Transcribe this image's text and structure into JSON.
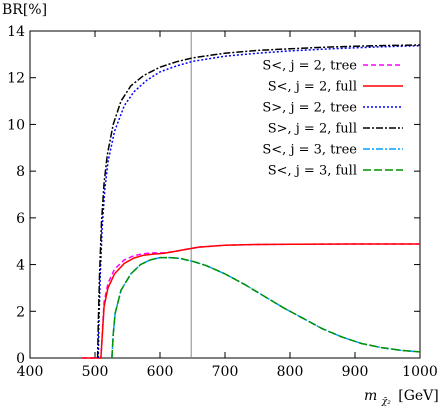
{
  "chart_data": {
    "type": "line",
    "ylabel": "BR[%]",
    "xlabel_main": "m",
    "xlabel_sub": "χ̃₂",
    "xlabel_unit": "[GeV]",
    "xlim": [
      400,
      1000
    ],
    "ylim": [
      0,
      14
    ],
    "xticks": [
      400,
      500,
      600,
      700,
      800,
      900,
      1000
    ],
    "yticks": [
      0,
      2,
      4,
      6,
      8,
      10,
      12,
      14
    ],
    "grid": false,
    "legend_position": "right",
    "vline_x": 648,
    "series": [
      {
        "name": "S<, j = 2, tree",
        "color": "#ff00ff",
        "dash": "5,3",
        "points": [
          [
            480,
            0
          ],
          [
            509,
            0
          ],
          [
            511,
            1.0
          ],
          [
            514,
            2.4
          ],
          [
            520,
            3.2
          ],
          [
            530,
            3.8
          ],
          [
            545,
            4.2
          ],
          [
            560,
            4.38
          ],
          [
            575,
            4.47
          ],
          [
            590,
            4.5
          ],
          [
            605,
            4.5
          ],
          [
            620,
            4.55
          ],
          [
            640,
            4.65
          ],
          [
            660,
            4.75
          ],
          [
            700,
            4.83
          ],
          [
            750,
            4.86
          ],
          [
            800,
            4.87
          ],
          [
            900,
            4.88
          ],
          [
            1000,
            4.88
          ]
        ]
      },
      {
        "name": "S<, j = 2, full",
        "color": "#ff0000",
        "dash": "",
        "points": [
          [
            480,
            0
          ],
          [
            509,
            0
          ],
          [
            511,
            0.9
          ],
          [
            514,
            2.2
          ],
          [
            520,
            3.0
          ],
          [
            530,
            3.6
          ],
          [
            545,
            4.05
          ],
          [
            560,
            4.28
          ],
          [
            575,
            4.4
          ],
          [
            590,
            4.45
          ],
          [
            605,
            4.48
          ],
          [
            620,
            4.55
          ],
          [
            640,
            4.65
          ],
          [
            660,
            4.75
          ],
          [
            700,
            4.83
          ],
          [
            750,
            4.86
          ],
          [
            800,
            4.87
          ],
          [
            900,
            4.88
          ],
          [
            1000,
            4.88
          ]
        ]
      },
      {
        "name": "S>, j = 2, tree",
        "color": "#0000ff",
        "dash": "2,2",
        "points": [
          [
            505,
            0
          ],
          [
            506,
            1.5
          ],
          [
            508,
            3.5
          ],
          [
            511,
            5.6
          ],
          [
            515,
            7.2
          ],
          [
            520,
            8.4
          ],
          [
            530,
            9.7
          ],
          [
            545,
            10.8
          ],
          [
            560,
            11.4
          ],
          [
            580,
            11.9
          ],
          [
            600,
            12.25
          ],
          [
            625,
            12.5
          ],
          [
            650,
            12.7
          ],
          [
            700,
            12.92
          ],
          [
            750,
            13.05
          ],
          [
            800,
            13.15
          ],
          [
            850,
            13.22
          ],
          [
            900,
            13.28
          ],
          [
            950,
            13.33
          ],
          [
            1000,
            13.37
          ]
        ]
      },
      {
        "name": "S>, j = 2, full",
        "color": "#000000",
        "dash": "7,2,2,2",
        "points": [
          [
            504,
            0
          ],
          [
            505,
            1.5
          ],
          [
            507,
            3.5
          ],
          [
            510,
            5.8
          ],
          [
            514,
            7.5
          ],
          [
            519,
            8.7
          ],
          [
            528,
            10.0
          ],
          [
            540,
            11.0
          ],
          [
            555,
            11.65
          ],
          [
            575,
            12.1
          ],
          [
            600,
            12.45
          ],
          [
            625,
            12.68
          ],
          [
            650,
            12.85
          ],
          [
            700,
            13.05
          ],
          [
            750,
            13.17
          ],
          [
            800,
            13.24
          ],
          [
            850,
            13.3
          ],
          [
            900,
            13.35
          ],
          [
            950,
            13.38
          ],
          [
            1000,
            13.4
          ]
        ]
      },
      {
        "name": "S<, j = 3, tree",
        "color": "#00a0ff",
        "dash": "7,2,2,2",
        "points": [
          [
            526,
            0
          ],
          [
            528,
            1.0
          ],
          [
            531,
            1.9
          ],
          [
            540,
            2.9
          ],
          [
            555,
            3.6
          ],
          [
            570,
            4.0
          ],
          [
            585,
            4.2
          ],
          [
            600,
            4.3
          ],
          [
            615,
            4.3
          ],
          [
            630,
            4.27
          ],
          [
            650,
            4.14
          ],
          [
            670,
            3.97
          ],
          [
            700,
            3.6
          ],
          [
            730,
            3.15
          ],
          [
            760,
            2.65
          ],
          [
            790,
            2.15
          ],
          [
            820,
            1.7
          ],
          [
            850,
            1.25
          ],
          [
            880,
            0.9
          ],
          [
            910,
            0.62
          ],
          [
            940,
            0.45
          ],
          [
            970,
            0.33
          ],
          [
            1000,
            0.26
          ]
        ]
      },
      {
        "name": "S<, j = 3, full",
        "color": "#009000",
        "dash": "8,3",
        "points": [
          [
            526,
            0
          ],
          [
            528,
            1.0
          ],
          [
            531,
            1.9
          ],
          [
            540,
            2.9
          ],
          [
            555,
            3.6
          ],
          [
            570,
            4.0
          ],
          [
            585,
            4.2
          ],
          [
            600,
            4.3
          ],
          [
            615,
            4.3
          ],
          [
            630,
            4.27
          ],
          [
            650,
            4.14
          ],
          [
            670,
            3.97
          ],
          [
            700,
            3.6
          ],
          [
            730,
            3.15
          ],
          [
            760,
            2.65
          ],
          [
            790,
            2.15
          ],
          [
            820,
            1.7
          ],
          [
            850,
            1.25
          ],
          [
            880,
            0.9
          ],
          [
            910,
            0.62
          ],
          [
            940,
            0.45
          ],
          [
            970,
            0.33
          ],
          [
            1000,
            0.26
          ]
        ]
      }
    ]
  }
}
